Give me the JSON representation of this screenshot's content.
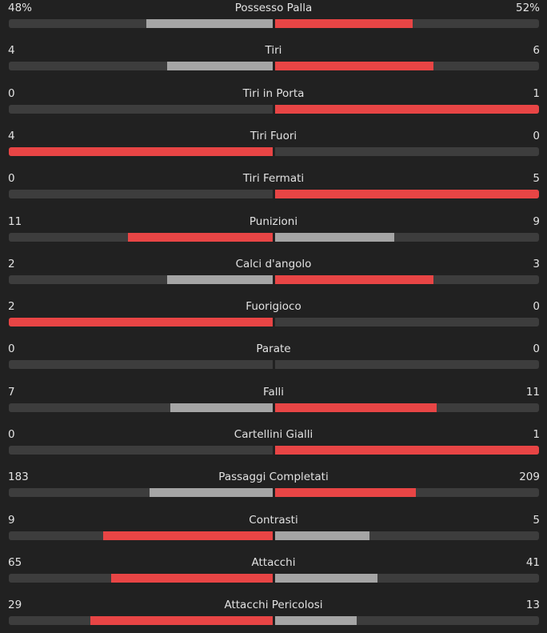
{
  "colors": {
    "background": "#212121",
    "track": "#3d3d3d",
    "leader": "#e84545",
    "trailer": "#a5a5a5",
    "text": "#e2e2e2"
  },
  "stats": [
    {
      "label": "Possesso Palla",
      "home": "48%",
      "away": "52%",
      "home_num": 48,
      "away_num": 52
    },
    {
      "label": "Tiri",
      "home": "4",
      "away": "6",
      "home_num": 4,
      "away_num": 6
    },
    {
      "label": "Tiri in Porta",
      "home": "0",
      "away": "1",
      "home_num": 0,
      "away_num": 1
    },
    {
      "label": "Tiri Fuori",
      "home": "4",
      "away": "0",
      "home_num": 4,
      "away_num": 0
    },
    {
      "label": "Tiri Fermati",
      "home": "0",
      "away": "5",
      "home_num": 0,
      "away_num": 5
    },
    {
      "label": "Punizioni",
      "home": "11",
      "away": "9",
      "home_num": 11,
      "away_num": 9
    },
    {
      "label": "Calci d'angolo",
      "home": "2",
      "away": "3",
      "home_num": 2,
      "away_num": 3
    },
    {
      "label": "Fuorigioco",
      "home": "2",
      "away": "0",
      "home_num": 2,
      "away_num": 0
    },
    {
      "label": "Parate",
      "home": "0",
      "away": "0",
      "home_num": 0,
      "away_num": 0
    },
    {
      "label": "Falli",
      "home": "7",
      "away": "11",
      "home_num": 7,
      "away_num": 11
    },
    {
      "label": "Cartellini Gialli",
      "home": "0",
      "away": "1",
      "home_num": 0,
      "away_num": 1
    },
    {
      "label": "Passaggi Completati",
      "home": "183",
      "away": "209",
      "home_num": 183,
      "away_num": 209
    },
    {
      "label": "Contrasti",
      "home": "9",
      "away": "5",
      "home_num": 9,
      "away_num": 5
    },
    {
      "label": "Attacchi",
      "home": "65",
      "away": "41",
      "home_num": 65,
      "away_num": 41
    },
    {
      "label": "Attacchi Pericolosi",
      "home": "29",
      "away": "13",
      "home_num": 29,
      "away_num": 13
    }
  ]
}
